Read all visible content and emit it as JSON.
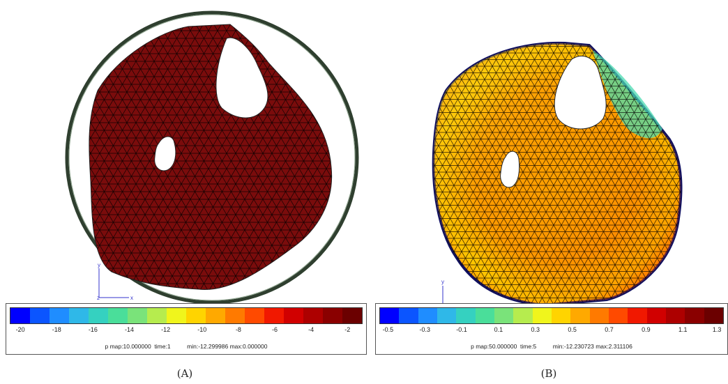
{
  "panels": [
    {
      "id": "a",
      "caption": "(A)",
      "info": "p map:10.000000  time:1          min:-12.299986 max:0.000000",
      "legend_ticks": [
        "-20",
        "-18",
        "-16",
        "-14",
        "-12",
        "-10",
        "-8",
        "-6",
        "-4",
        "-2"
      ],
      "axis_labels": {
        "y": "y",
        "x": "x",
        "z": "z"
      }
    },
    {
      "id": "b",
      "caption": "(B)",
      "info": "p map:50.000000  time:5          min:-12.230723 max:2.311106",
      "legend_ticks": [
        "-0.5",
        "-0.3",
        "-0.1",
        "0.1",
        "0.3",
        "0.5",
        "0.7",
        "0.9",
        "1.1",
        "1.3"
      ],
      "axis_labels": {
        "y": "y"
      }
    }
  ],
  "colormap": [
    "#0000ff",
    "#0b55ff",
    "#1f8dff",
    "#2fb8e8",
    "#35d1c0",
    "#4ade9a",
    "#7ae37a",
    "#b6ec4e",
    "#f0f51c",
    "#ffd400",
    "#ffa900",
    "#ff7a00",
    "#ff4a00",
    "#f11800",
    "#d10000",
    "#ad0000",
    "#8a0000",
    "#6b0000"
  ],
  "fill_a": "#7a0c0c",
  "ring_color": "#3a4a3a",
  "outline_b": "#101060"
}
